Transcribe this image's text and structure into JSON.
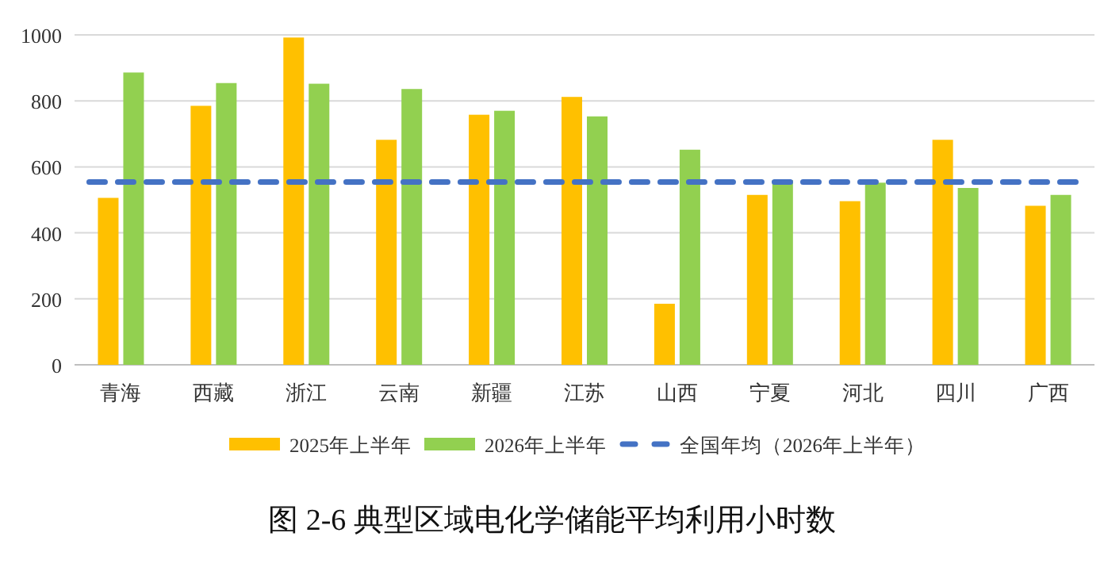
{
  "chart_data": {
    "type": "bar",
    "title": "图 2-6 典型区域电化学储能平均利用小时数",
    "categories": [
      "青海",
      "西藏",
      "浙江",
      "云南",
      "新疆",
      "江苏",
      "山西",
      "宁夏",
      "河北",
      "四川",
      "广西"
    ],
    "series": [
      {
        "name": "2025年上半年",
        "color": "#ffc000",
        "values": [
          506,
          785,
          992,
          682,
          758,
          812,
          185,
          515,
          496,
          682,
          482
        ]
      },
      {
        "name": "2026年上半年",
        "color": "#92d050",
        "values": [
          886,
          854,
          852,
          836,
          770,
          753,
          652,
          560,
          552,
          536,
          515
        ]
      }
    ],
    "ylim": [
      0,
      1000
    ],
    "yticks": [
      0,
      200,
      400,
      600,
      800,
      1000
    ],
    "grid": "y",
    "legend": "bottom",
    "ref_lines": [
      {
        "axis": "y",
        "value": 554,
        "label": "全国年均（2026年上半年）",
        "color": "#4472c4",
        "line_style": "dashed"
      }
    ]
  }
}
